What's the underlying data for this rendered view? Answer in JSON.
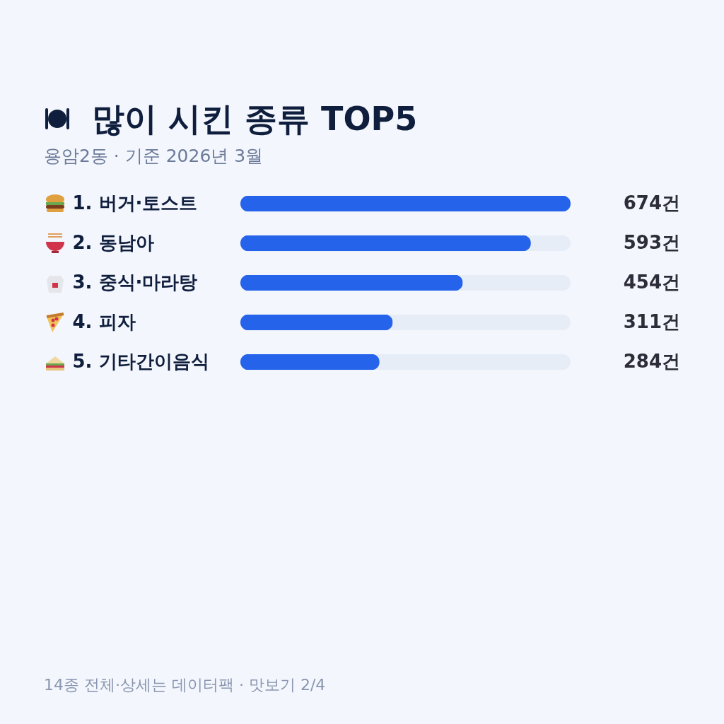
{
  "chart_data": {
    "type": "bar",
    "orientation": "horizontal",
    "title": "많이 시킨 종류 TOP5",
    "subtitle": "용암2동 · 기준 2026년 3월",
    "categories": [
      "1. 버거·토스트",
      "2. 동남아",
      "3. 중식·마라탕",
      "4. 피자",
      "5. 기타간이음식"
    ],
    "values": [
      674,
      593,
      454,
      311,
      284
    ],
    "value_labels": [
      "674건",
      "593건",
      "454건",
      "311건",
      "284건"
    ],
    "color": "#2563eb",
    "grid": false,
    "annotations": [
      "14종 전체·상세는 데이터팩 · 맛보기 2/4"
    ]
  }
}
